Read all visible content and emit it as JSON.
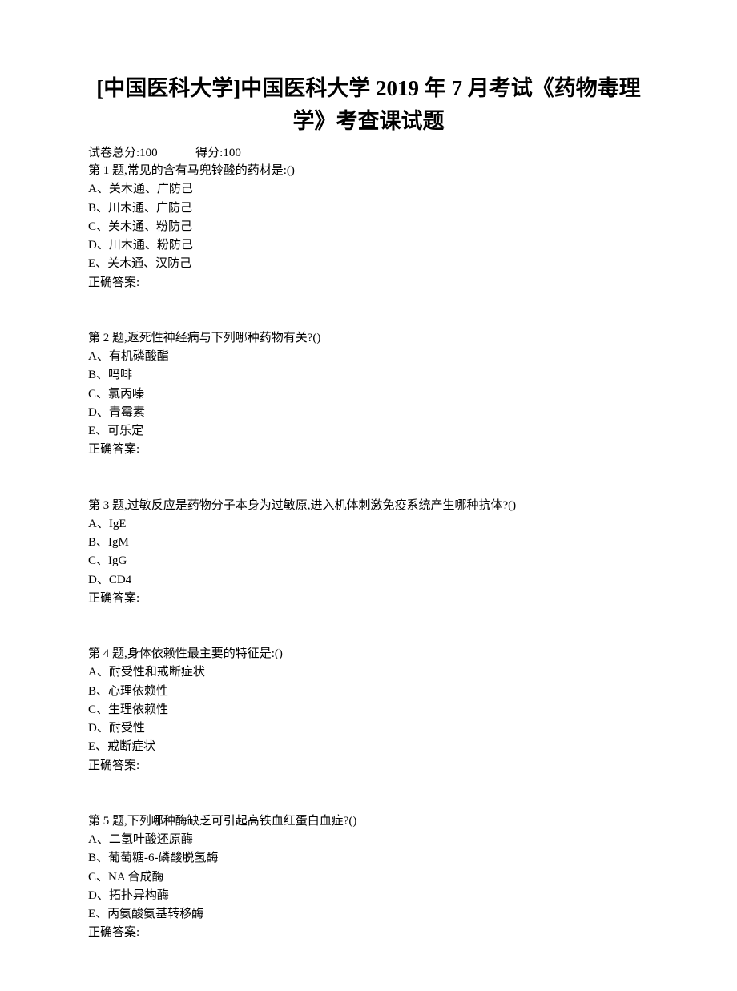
{
  "title": "[中国医科大学]中国医科大学 2019 年 7 月考试《药物毒理学》考查课试题",
  "score": {
    "total_label": "试卷总分:100",
    "obtained_label": "得分:100"
  },
  "answer_label": "正确答案:",
  "questions": [
    {
      "prompt": "第 1 题,常见的含有马兜铃酸的药材是:()",
      "options": [
        "A、关木通、广防己",
        "B、川木通、广防己",
        "C、关木通、粉防己",
        "D、川木通、粉防己",
        "E、关木通、汉防己"
      ]
    },
    {
      "prompt": "第 2 题,返死性神经病与下列哪种药物有关?()",
      "options": [
        "A、有机磷酸酯",
        "B、吗啡",
        "C、氯丙嗪",
        "D、青霉素",
        "E、可乐定"
      ]
    },
    {
      "prompt": "第 3 题,过敏反应是药物分子本身为过敏原,进入机体刺激免疫系统产生哪种抗体?()",
      "options": [
        "A、IgE",
        "B、IgM",
        "C、IgG",
        "D、CD4"
      ]
    },
    {
      "prompt": "第 4 题,身体依赖性最主要的特征是:()",
      "options": [
        "A、耐受性和戒断症状",
        "B、心理依赖性",
        "C、生理依赖性",
        "D、耐受性",
        "E、戒断症状"
      ]
    },
    {
      "prompt": "第 5 题,下列哪种酶缺乏可引起高铁血红蛋白血症?()",
      "options": [
        "A、二氢叶酸还原酶",
        "B、葡萄糖-6-磷酸脱氢酶",
        "C、NA 合成酶",
        "D、拓扑异构酶",
        "E、丙氨酸氨基转移酶"
      ]
    }
  ]
}
